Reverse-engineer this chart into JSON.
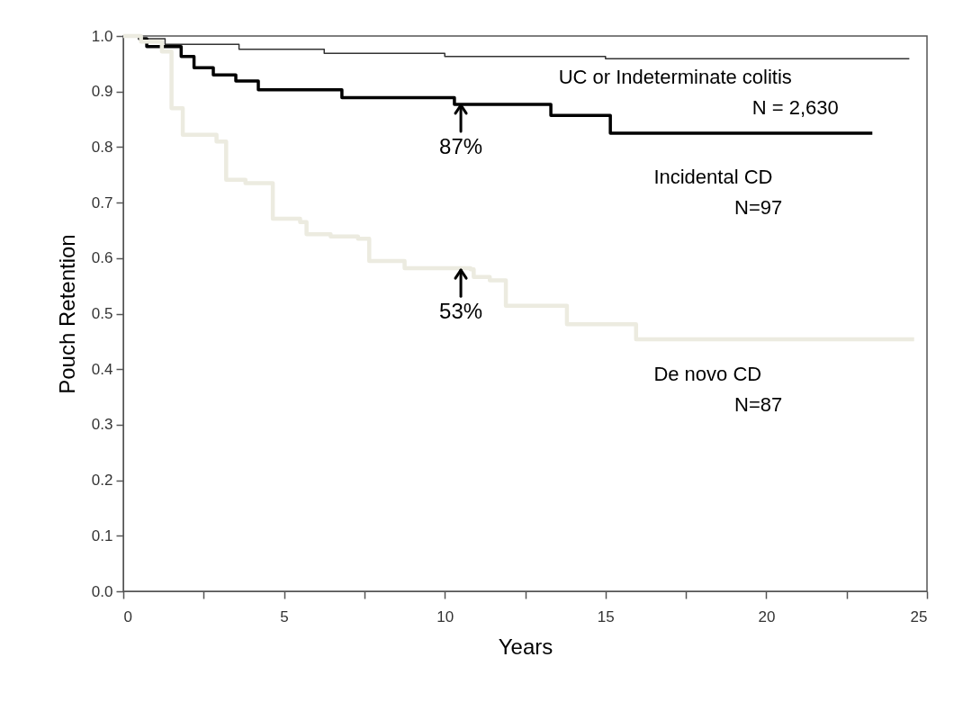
{
  "chart_data": {
    "type": "step",
    "xlabel": "Years",
    "ylabel": "Pouch Retention",
    "xlim": [
      0,
      25
    ],
    "ylim": [
      0,
      1.0
    ],
    "xticks": [
      0,
      {
        "value": 2.5,
        "label": null
      },
      5,
      {
        "value": 7.5,
        "label": null
      },
      10,
      {
        "value": 12.5,
        "label": null
      },
      15,
      {
        "value": 17.5,
        "label": null
      },
      20,
      {
        "value": 22.5,
        "label": null
      },
      25
    ],
    "yticks": [
      {
        "value": 0,
        "label": "0.0"
      },
      0.1,
      0.2,
      0.3,
      0.4,
      0.5,
      0.6,
      0.7,
      0.8,
      0.9,
      {
        "value": 1.0,
        "label": "1.0"
      }
    ],
    "grid": false,
    "marker": "none",
    "line_style": "solid",
    "series": [
      {
        "name": "UC or Indeterminate colitis",
        "color": "#333333",
        "x": [
          0,
          0.5,
          1.3,
          3.6,
          6.25,
          10.0,
          15.0,
          24.45
        ],
        "values": [
          1.0,
          0.995,
          0.985,
          0.976,
          0.969,
          0.963,
          0.959,
          0.959
        ]
      },
      {
        "name": "Incidental CD",
        "color": "#000000",
        "x": [
          0,
          0.5,
          0.73,
          1.8,
          2.2,
          2.8,
          3.5,
          4.2,
          6.8,
          10.3,
          13.3,
          15.15,
          23.3
        ],
        "values": [
          1.0,
          0.995,
          0.981,
          0.963,
          0.943,
          0.93,
          0.919,
          0.903,
          0.889,
          0.877,
          0.857,
          0.825,
          0.825
        ]
      },
      {
        "name": "De novo CD",
        "color": "#ecebe0",
        "x": [
          0,
          0.55,
          1.2,
          1.5,
          1.85,
          2.9,
          3.2,
          3.8,
          4.65,
          5.5,
          5.7,
          6.45,
          7.3,
          7.65,
          8.75,
          10.8,
          10.9,
          11.4,
          11.9,
          13.2,
          13.8,
          15.95,
          24.6
        ],
        "values": [
          1.0,
          0.99,
          0.972,
          0.87,
          0.822,
          0.81,
          0.741,
          0.735,
          0.671,
          0.665,
          0.643,
          0.639,
          0.635,
          0.595,
          0.582,
          0.58,
          0.566,
          0.56,
          0.514,
          0.514,
          0.481,
          0.454,
          0.454
        ]
      }
    ],
    "annotations": [
      {
        "text": "87%",
        "x": 10.5,
        "y": 0.877
      },
      {
        "text": "53%",
        "x": 10.5,
        "y": 0.58
      },
      "N = 2,630",
      "N=97",
      "N=87"
    ]
  }
}
